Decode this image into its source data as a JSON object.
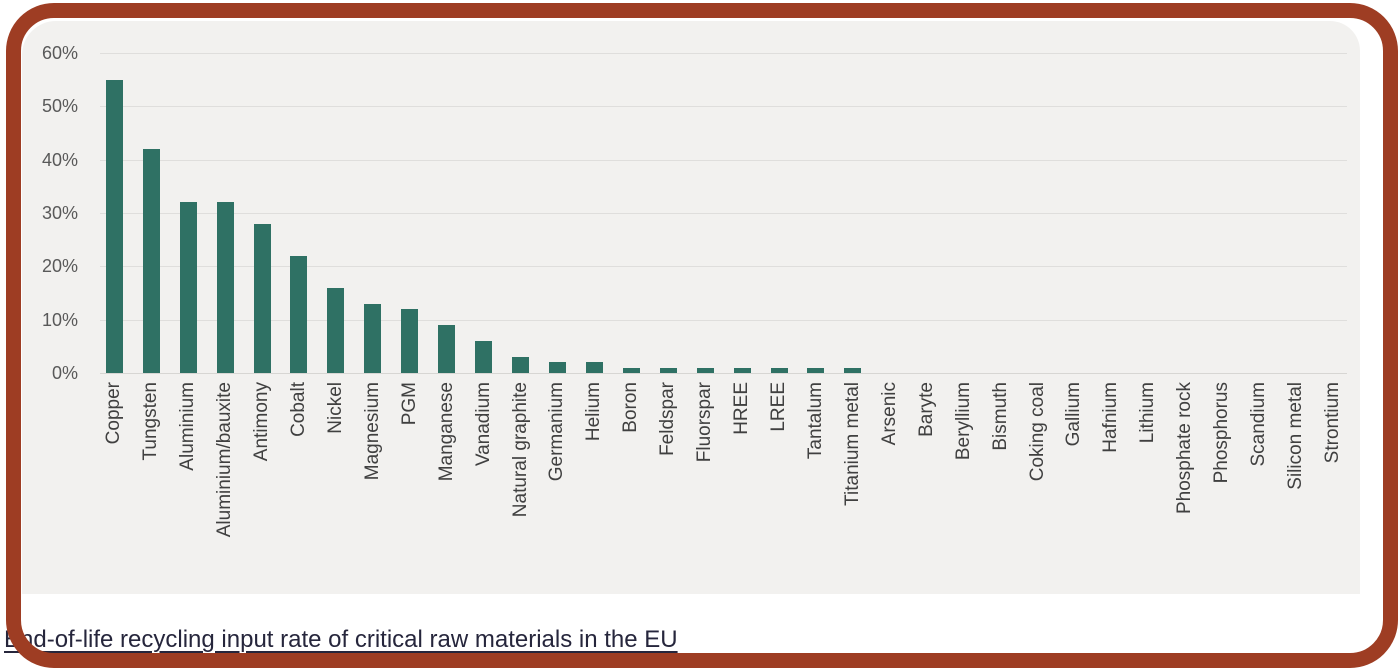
{
  "window": {
    "background": "#FFFFFF"
  },
  "frame": {
    "border_color": "#9E3D23"
  },
  "panel": {
    "background": "#F2F1EF"
  },
  "caption": {
    "text": "End-of-life recycling input rate of critical raw materials in the EU",
    "color": "#26263C"
  },
  "chart_data": {
    "type": "bar",
    "title": "End-of-life recycling input rate of critical raw materials in the EU",
    "xlabel": "",
    "ylabel": "",
    "unit": "percent",
    "categories": [
      "Copper",
      "Tungsten",
      "Aluminium",
      "Aluminium/bauxite",
      "Antimony",
      "Cobalt",
      "Nickel",
      "Magnesium",
      "PGM",
      "Manganese",
      "Vanadium",
      "Natural graphite",
      "Germanium",
      "Helium",
      "Boron",
      "Feldspar",
      "Fluorspar",
      "HREE",
      "LREE",
      "Tantalum",
      "Titanium metal",
      "Arsenic",
      "Baryte",
      "Beryllium",
      "Bismuth",
      "Coking coal",
      "Gallium",
      "Hafnium",
      "Lithium",
      "Phosphate rock",
      "Phosphorus",
      "Scandium",
      "Silicon metal",
      "Strontium"
    ],
    "values": [
      55,
      42,
      32,
      32,
      28,
      22,
      16,
      13,
      12,
      9,
      6,
      3,
      2,
      2,
      1,
      1,
      1,
      1,
      1,
      1,
      1,
      0,
      0,
      0,
      0,
      0,
      0,
      0,
      0,
      0,
      0,
      0,
      0,
      0
    ],
    "y_tick_labels": [
      "0%",
      "10%",
      "20%",
      "30%",
      "40%",
      "50%",
      "60%"
    ],
    "y_tick_step": 10,
    "ylim": [
      0,
      60
    ],
    "grid": true,
    "legend_position": "none",
    "bar_color": "#2F7164",
    "gridline_color": "#DFDEDC",
    "tick_label_color": "#595959",
    "category_label_color": "#404040"
  }
}
